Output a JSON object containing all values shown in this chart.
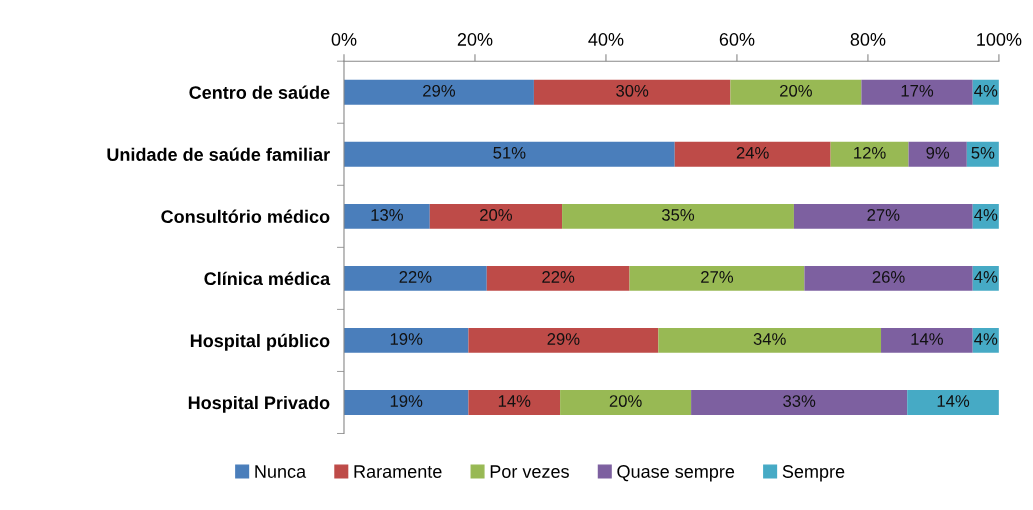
{
  "chart_data": {
    "type": "bar",
    "orientation": "horizontal",
    "stacked": true,
    "categories": [
      "Centro de saúde",
      "Unidade de saúde familiar",
      "Consultório médico",
      "Clínica médica",
      "Hospital público",
      "Hospital Privado"
    ],
    "series": [
      {
        "name": "Nunca",
        "color": "#4a7ebb",
        "values": [
          29,
          50.5,
          13.1,
          21.8,
          19,
          19
        ],
        "value_labels": [
          "29%",
          "51%",
          "13%",
          "22%",
          "19%",
          "19%"
        ]
      },
      {
        "name": "Raramente",
        "color": "#be4b48",
        "values": [
          30,
          23.8,
          20.2,
          21.8,
          29,
          14
        ],
        "value_labels": [
          "30%",
          "24%",
          "20%",
          "22%",
          "29%",
          "14%"
        ]
      },
      {
        "name": "Por vezes",
        "color": "#98b954",
        "values": [
          20,
          11.9,
          35.4,
          26.7,
          34,
          20
        ],
        "value_labels": [
          "20%",
          "12%",
          "35%",
          "27%",
          "34%",
          "20%"
        ]
      },
      {
        "name": "Quase sempre",
        "color": "#7d60a0",
        "values": [
          17,
          8.9,
          27.3,
          25.7,
          14,
          33
        ],
        "value_labels": [
          "17%",
          "9%",
          "27%",
          "26%",
          "14%",
          "33%"
        ]
      },
      {
        "name": "Sempre",
        "color": "#46aac5",
        "values": [
          4,
          4.9,
          4.0,
          4.0,
          4,
          14
        ],
        "value_labels": [
          "4%",
          "5%",
          "4%",
          "4%",
          "4%",
          "14%"
        ]
      }
    ],
    "xlim": [
      0,
      100
    ],
    "xticks": [
      {
        "value": 0,
        "label": "0%"
      },
      {
        "value": 20,
        "label": "20%"
      },
      {
        "value": 40,
        "label": "40%"
      },
      {
        "value": 60,
        "label": "60%"
      },
      {
        "value": 80,
        "label": "80%"
      },
      {
        "value": 100,
        "label": "100%"
      }
    ],
    "grid": false,
    "legend": "bottom"
  }
}
